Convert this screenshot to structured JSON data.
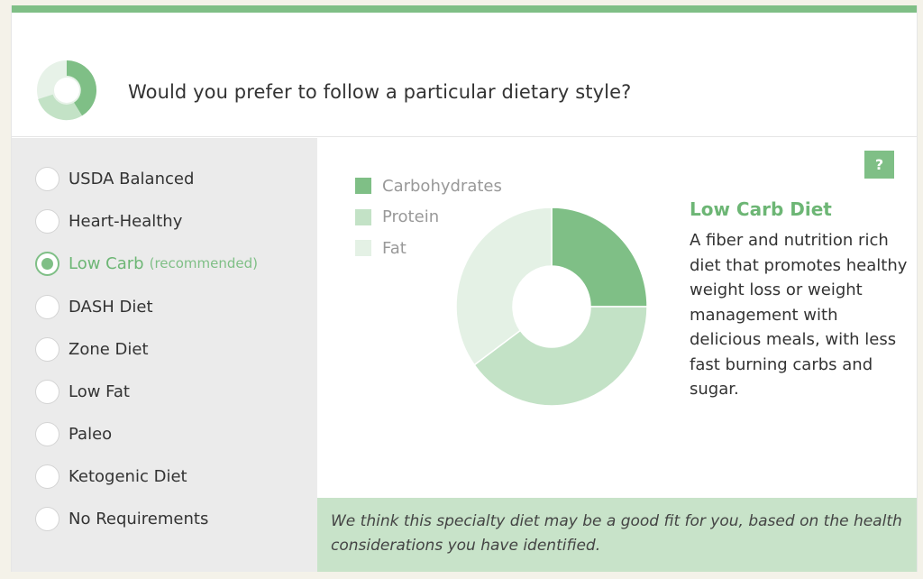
{
  "header": {
    "question": "Would you prefer to follow a particular dietary style?",
    "icon": "donut-chart-icon"
  },
  "options": [
    {
      "label": "USDA Balanced",
      "note": "",
      "selected": false
    },
    {
      "label": "Heart-Healthy",
      "note": "",
      "selected": false
    },
    {
      "label": "Low Carb",
      "note": "(recommended)",
      "selected": true
    },
    {
      "label": "DASH Diet",
      "note": "",
      "selected": false
    },
    {
      "label": "Zone Diet",
      "note": "",
      "selected": false
    },
    {
      "label": "Low Fat",
      "note": "",
      "selected": false
    },
    {
      "label": "Paleo",
      "note": "",
      "selected": false
    },
    {
      "label": "Ketogenic Diet",
      "note": "",
      "selected": false
    },
    {
      "label": "No Requirements",
      "note": "",
      "selected": false
    }
  ],
  "help_button": {
    "label": "?"
  },
  "chart_data": {
    "type": "pie",
    "donut": true,
    "categories": [
      "Carbohydrates",
      "Protein",
      "Fat"
    ],
    "values": [
      25,
      40,
      35
    ],
    "colors": [
      "#7fbf86",
      "#c3e2c6",
      "#e4f1e5"
    ],
    "legend_position": "top-left"
  },
  "diet": {
    "title": "Low Carb Diet",
    "description": "A fiber and nutrition rich diet that promotes healthy weight loss or weight management with delicious meals, with less fast burning carbs and sugar."
  },
  "footer_note": "We think this specialty diet may be a good fit for you, based on the health considerations you have identified.",
  "colors": {
    "accent": "#7fbf86",
    "accent_text": "#6db675",
    "footer_bg": "#c8e3c9",
    "sidebar_bg": "#ebebeb"
  }
}
